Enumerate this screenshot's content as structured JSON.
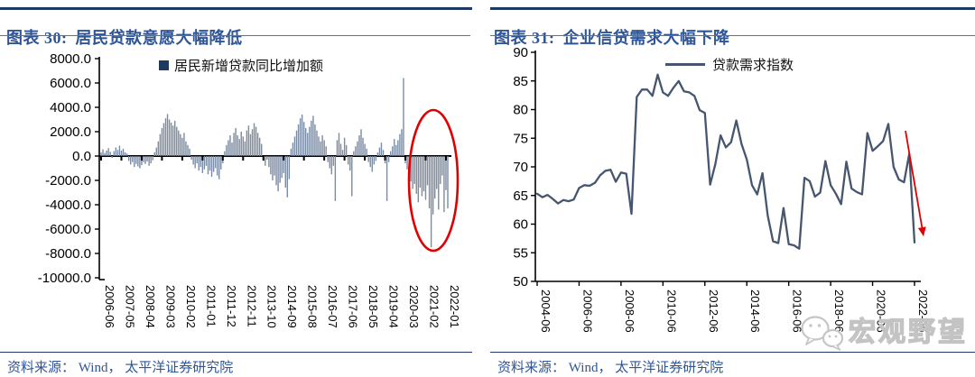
{
  "watermark": {
    "text": "宏观野望",
    "icon": "wechat-icon",
    "color": "#c6c6c6"
  },
  "panels": [
    {
      "source": "资料来源： Wind， 太平洋证券研究院"
    },
    {
      "source": "资料来源： Wind， 太平洋证券研究院"
    }
  ],
  "chart_data": [
    {
      "type": "bar",
      "figure_label": "图表 30:",
      "title": "居民贷款意愿大幅降低",
      "legend": "居民新增贷款同比增加额",
      "legend_swatch_color": "#1F3A5F",
      "bar_color": "#7B8BA2",
      "ylim": [
        -10000,
        8000
      ],
      "ytick_step": 2000,
      "ytick_format": "one_decimal",
      "x_freq": "monthly",
      "x_start": "2006-06",
      "x_end": "2022-02",
      "x_tick_every_months": 11,
      "x_tick_labels": [
        "2006-06",
        "2007-05",
        "2008-04",
        "2009-03",
        "2010-02",
        "2011-01",
        "2011-12",
        "2012-11",
        "2013-10",
        "2014-09",
        "2015-08",
        "2016-07",
        "2017-06",
        "2018-05",
        "2019-04",
        "2020-03",
        "2021-02",
        "2022-01"
      ],
      "values": [
        300,
        550,
        250,
        450,
        650,
        350,
        -150,
        400,
        700,
        500,
        850,
        450,
        600,
        300,
        200,
        -400,
        -700,
        -500,
        -900,
        -650,
        -850,
        -1000,
        -750,
        -500,
        -650,
        -450,
        -800,
        -600,
        -350,
        300,
        700,
        1200,
        1800,
        2300,
        2700,
        3100,
        3450,
        3000,
        2750,
        2500,
        2900,
        2400,
        2100,
        1800,
        1500,
        1900,
        1200,
        900,
        600,
        -300,
        -700,
        -1000,
        -600,
        -1200,
        -900,
        -1400,
        -1100,
        -800,
        -1500,
        -1200,
        -1700,
        -1300,
        -1000,
        -1600,
        -1900,
        -1100,
        -600,
        400,
        900,
        1300,
        1700,
        1100,
        1900,
        2300,
        1700,
        1400,
        2000,
        1600,
        1200,
        2100,
        2500,
        1800,
        2200,
        2700,
        2400,
        1900,
        1500,
        1000,
        -400,
        -800,
        -300,
        -900,
        -1500,
        -2000,
        -1600,
        -2400,
        -2900,
        -2200,
        -1800,
        -1400,
        -2600,
        -3400,
        -1900,
        600,
        1100,
        1600,
        2100,
        2600,
        3100,
        3400,
        2800,
        2300,
        1900,
        2400,
        2900,
        3300,
        2600,
        2100,
        1600,
        1200,
        1700,
        1300,
        800,
        -500,
        -1000,
        -1500,
        -800,
        -3700,
        1300,
        1900,
        1000,
        500,
        1500,
        900,
        -700,
        -1200,
        -3300,
        400,
        800,
        1200,
        1700,
        2200,
        1500,
        1000,
        600,
        -500,
        -900,
        -1300,
        -700,
        -400,
        300,
        700,
        1100,
        500,
        -600,
        -3700,
        -500,
        400,
        800,
        1400,
        900,
        1300,
        1800,
        2200,
        6400,
        -600,
        -1100,
        -1600,
        -2100,
        -2700,
        -2300,
        -3100,
        -3800,
        -2600,
        -3300,
        -2900,
        -3600,
        -2400,
        -4300,
        -7500,
        -4800,
        -3500,
        -2700,
        -4400,
        -2300,
        -1600,
        -4600,
        -2800,
        -4300
      ],
      "annotation": {
        "type": "ellipse",
        "color": "#E00000",
        "note": "highlights deep negative bars in 2021-2022"
      }
    },
    {
      "type": "line",
      "figure_label": "图表 31:",
      "title": "企业信贷需求大幅下降",
      "legend": "贷款需求指数",
      "line_color": "#46566E",
      "ylim": [
        50,
        90
      ],
      "ytick_step": 5,
      "x_freq": "quarterly",
      "x_start": "2004-Q2",
      "x_end": "2022-Q2",
      "x_tick_every_quarters": 8,
      "x_tick_labels": [
        "2004-06",
        "2006-06",
        "2008-06",
        "2010-06",
        "2012-06",
        "2014-06",
        "2016-06",
        "2018-06",
        "2020-06",
        "2022-06"
      ],
      "values": [
        65.3,
        64.7,
        65.1,
        64.4,
        63.6,
        64.2,
        64.0,
        64.3,
        66.3,
        66.8,
        66.7,
        67.2,
        68.5,
        69.3,
        69.5,
        67.4,
        69.0,
        68.8,
        61.8,
        82.2,
        83.5,
        83.5,
        82.4,
        86.1,
        83.0,
        82.4,
        83.8,
        85.0,
        83.2,
        83.0,
        82.4,
        79.9,
        79.4,
        66.9,
        70.5,
        75.5,
        73.4,
        74.3,
        78.1,
        74.0,
        71.3,
        66.8,
        65.2,
        68.9,
        61.5,
        57.0,
        56.7,
        62.8,
        56.5,
        56.3,
        55.7,
        68.1,
        67.5,
        64.8,
        65.5,
        71.0,
        66.8,
        65.3,
        63.5,
        70.9,
        66.2,
        65.6,
        65.2,
        75.9,
        72.8,
        73.6,
        74.5,
        77.5,
        70.0,
        67.8,
        67.3,
        72.3,
        56.8
      ],
      "annotation": {
        "type": "arrow-down",
        "color": "#E00000",
        "note": "sharp drop of loan demand index in 2022"
      }
    }
  ]
}
